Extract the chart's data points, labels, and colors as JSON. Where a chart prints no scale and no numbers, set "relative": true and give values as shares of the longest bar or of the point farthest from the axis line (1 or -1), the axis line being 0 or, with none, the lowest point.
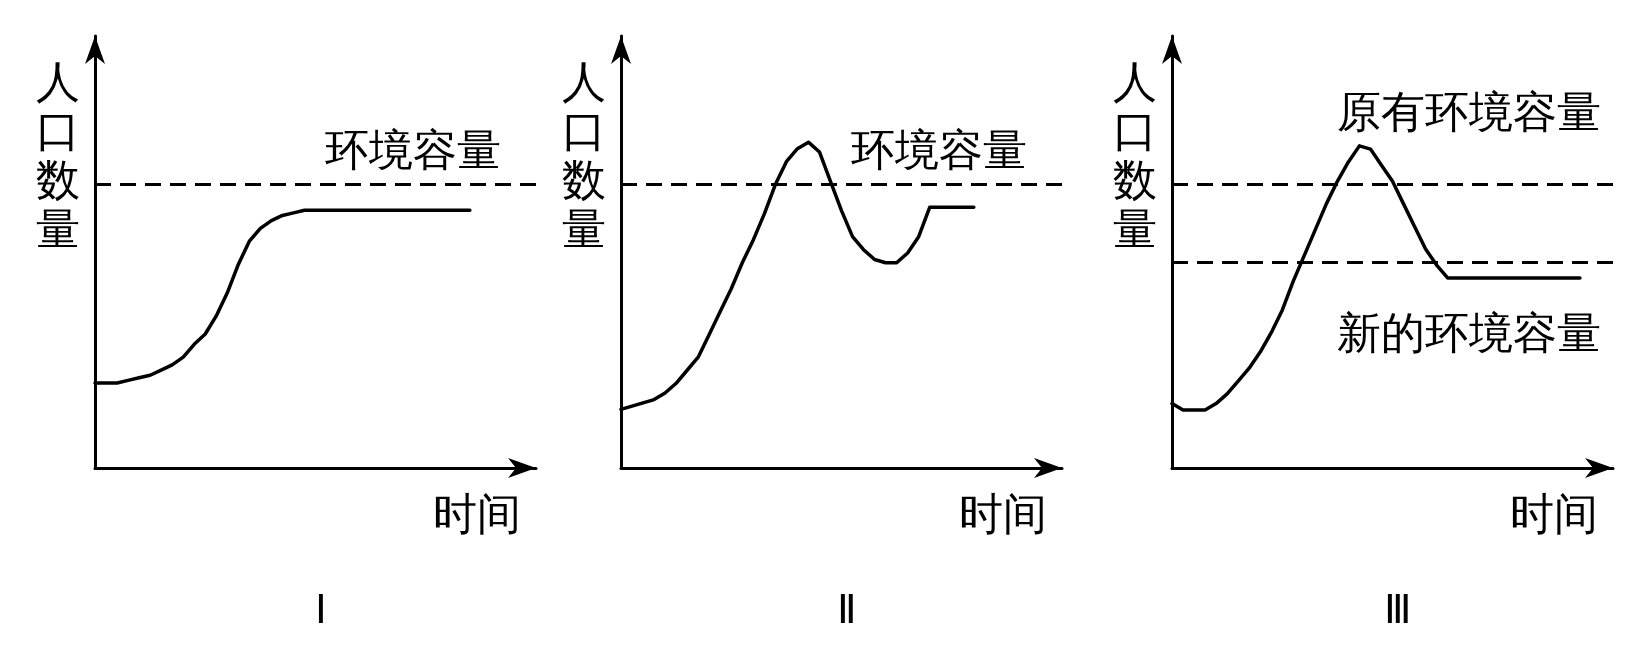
{
  "chart_data": [
    {
      "type": "line",
      "title": "Ⅰ",
      "xlabel": "时间",
      "ylabel": "人口数量",
      "relative": true,
      "categories": [
        null,
        null,
        null,
        null,
        null,
        null,
        null,
        null,
        null,
        null,
        null,
        null,
        null,
        null,
        null,
        null,
        null,
        null,
        null,
        null,
        null,
        null,
        null,
        null,
        null,
        null,
        null,
        null,
        null,
        null,
        null,
        null,
        null,
        null,
        null,
        null,
        null,
        null,
        null,
        null,
        null
      ],
      "series": [
        {
          "color": "#000000",
          "values": [
            0.33,
            0.33,
            0.33,
            0.34,
            0.35,
            0.36,
            0.38,
            0.4,
            0.43,
            0.48,
            0.52,
            0.59,
            0.68,
            0.79,
            0.88,
            0.93,
            0.96,
            0.98,
            0.99,
            1,
            1,
            1,
            1,
            1,
            1,
            1,
            1,
            1,
            1,
            1,
            1,
            1,
            1,
            1,
            1,
            null,
            null,
            null,
            null,
            null,
            null
          ]
        }
      ],
      "ref_lines": [
        {
          "axis": "y",
          "value": 1.1,
          "label": "环境容量",
          "color": "#000000",
          "line_style": "dashed"
        }
      ]
    },
    {
      "type": "line",
      "title": "Ⅱ",
      "xlabel": "时间",
      "ylabel": "人口数量",
      "relative": true,
      "categories": [
        null,
        null,
        null,
        null,
        null,
        null,
        null,
        null,
        null,
        null,
        null,
        null,
        null,
        null,
        null,
        null,
        null,
        null,
        null,
        null,
        null,
        null,
        null,
        null,
        null,
        null,
        null,
        null,
        null,
        null,
        null,
        null,
        null,
        null,
        null,
        null,
        null,
        null,
        null,
        null,
        null
      ],
      "series": [
        {
          "color": "#000000",
          "values": [
            0.18,
            0.19,
            0.2,
            0.21,
            0.23,
            0.26,
            0.3,
            0.34,
            0.41,
            0.48,
            0.55,
            0.63,
            0.7,
            0.78,
            0.87,
            0.94,
            0.98,
            1,
            0.97,
            0.88,
            0.79,
            0.71,
            0.67,
            0.64,
            0.63,
            0.63,
            0.66,
            0.71,
            0.8,
            0.8,
            0.8,
            0.8,
            0.8,
            null,
            null,
            null,
            null,
            null,
            null,
            null,
            null
          ]
        }
      ],
      "ref_lines": [
        {
          "axis": "y",
          "value": 0.87,
          "label": "环境容量",
          "color": "#000000",
          "line_style": "dashed"
        }
      ]
    },
    {
      "type": "line",
      "title": "Ⅲ",
      "xlabel": "时间",
      "ylabel": "人口数量",
      "relative": true,
      "categories": [
        null,
        null,
        null,
        null,
        null,
        null,
        null,
        null,
        null,
        null,
        null,
        null,
        null,
        null,
        null,
        null,
        null,
        null,
        null,
        null,
        null,
        null,
        null,
        null,
        null,
        null,
        null,
        null,
        null,
        null,
        null,
        null,
        null,
        null,
        null,
        null,
        null,
        null,
        null,
        null,
        null
      ],
      "series": [
        {
          "color": "#000000",
          "values": [
            0.2,
            0.18,
            0.18,
            0.18,
            0.2,
            0.23,
            0.27,
            0.31,
            0.36,
            0.42,
            0.49,
            0.58,
            0.66,
            0.74,
            0.82,
            0.89,
            0.95,
            1,
            0.99,
            0.94,
            0.89,
            0.82,
            0.75,
            0.68,
            0.63,
            0.59,
            0.59,
            0.59,
            0.59,
            0.59,
            0.59,
            0.59,
            0.59,
            0.59,
            0.59,
            0.59,
            0.59,
            0.59,
            null,
            null,
            null
          ]
        }
      ],
      "ref_lines": [
        {
          "axis": "y",
          "value": 0.88,
          "label": "原有环境容量",
          "color": "#000000",
          "line_style": "dashed"
        },
        {
          "axis": "y",
          "value": 0.64,
          "label": "新的环境容量",
          "color": "#000000",
          "line_style": "dashed"
        }
      ]
    }
  ]
}
